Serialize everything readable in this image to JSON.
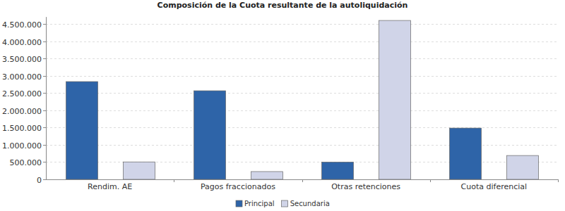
{
  "chart_data": {
    "type": "bar",
    "title": "Composición de la Cuota resultante de la autoliquidación",
    "categories": [
      "Rendim. AE",
      "Pagos fraccionados",
      "Otras retenciones",
      "Cuota diferencial"
    ],
    "series": [
      {
        "name": "Principal",
        "color": "#2e64a8",
        "values": [
          2830000,
          2565000,
          500000,
          1485000
        ]
      },
      {
        "name": "Secundaria",
        "color": "#d0d4e8",
        "values": [
          505000,
          225000,
          4600000,
          690000
        ]
      }
    ],
    "ylim": [
      0,
      4700000
    ],
    "yticks": [
      {
        "value": 0,
        "label": "0"
      },
      {
        "value": 500000,
        "label": "500.000"
      },
      {
        "value": 1000000,
        "label": "1.000.000"
      },
      {
        "value": 1500000,
        "label": "1.500.000"
      },
      {
        "value": 2000000,
        "label": "2.000.000"
      },
      {
        "value": 2500000,
        "label": "2.500.000"
      },
      {
        "value": 3000000,
        "label": "3.000.000"
      },
      {
        "value": 3500000,
        "label": "3.500.000"
      },
      {
        "value": 4000000,
        "label": "4.000.000"
      },
      {
        "value": 4500000,
        "label": "4.500.000"
      }
    ],
    "grid": true,
    "legend": "bottom"
  }
}
